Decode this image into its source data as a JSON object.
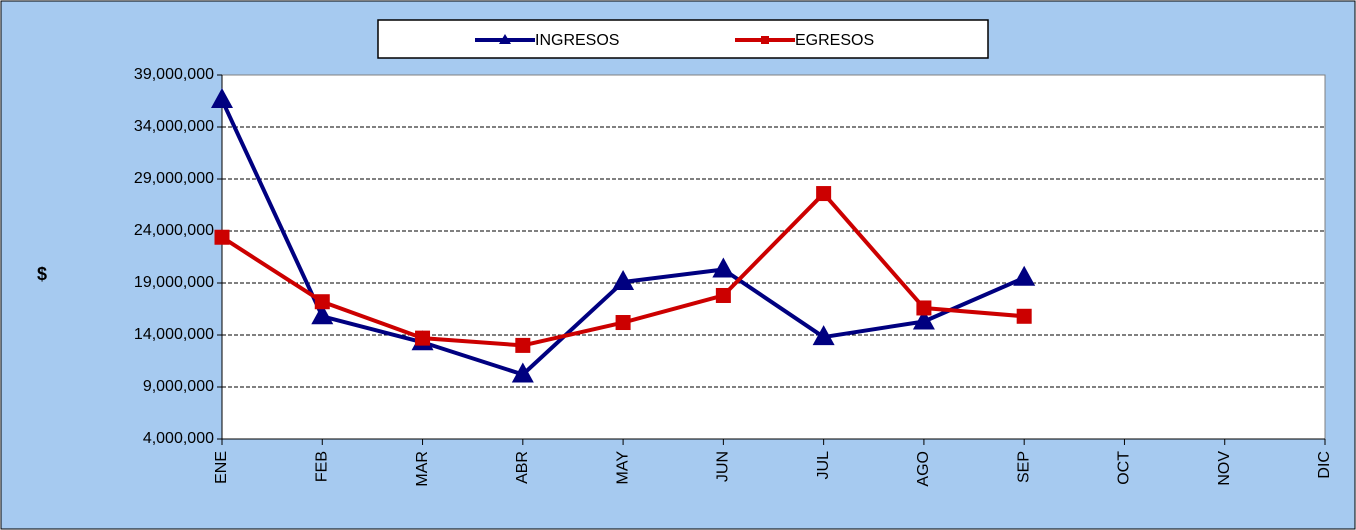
{
  "chart_data": {
    "type": "line",
    "y_label": "$",
    "categories": [
      "ENE",
      "FEB",
      "MAR",
      "ABR",
      "MAY",
      "JUN",
      "JUL",
      "AGO",
      "SEP",
      "OCT",
      "NOV",
      "DIC"
    ],
    "series": [
      {
        "name": "INGRESOS",
        "color": "#000080",
        "marker": "triangle",
        "values": [
          36600000,
          15800000,
          13300000,
          10200000,
          19100000,
          20300000,
          13800000,
          15300000,
          19500000,
          null,
          null,
          null
        ]
      },
      {
        "name": "EGRESOS",
        "color": "#cc0000",
        "marker": "square",
        "values": [
          23400000,
          17200000,
          13700000,
          13000000,
          15200000,
          17800000,
          27600000,
          16600000,
          15800000,
          null,
          null,
          null
        ]
      }
    ],
    "ylim": [
      4000000,
      39000000
    ],
    "yticks": [
      {
        "value": 4000000,
        "label": "4,000,000"
      },
      {
        "value": 9000000,
        "label": "9,000,000"
      },
      {
        "value": 14000000,
        "label": "14,000,000"
      },
      {
        "value": 19000000,
        "label": "19,000,000"
      },
      {
        "value": 24000000,
        "label": "24,000,000"
      },
      {
        "value": 29000000,
        "label": "29,000,000"
      },
      {
        "value": 34000000,
        "label": "34,000,000"
      },
      {
        "value": 39000000,
        "label": "39,000,000"
      }
    ],
    "grid": true,
    "legend": "top"
  }
}
